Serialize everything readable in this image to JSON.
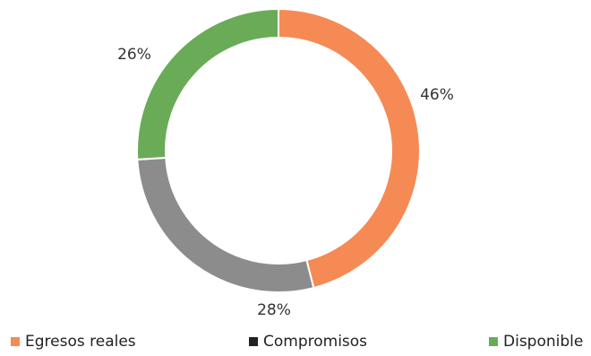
{
  "chart_data": {
    "type": "pie",
    "subtype": "donut",
    "categories": [
      "Egresos reales",
      "Compromisos",
      "Disponible"
    ],
    "values": [
      46,
      28,
      26
    ],
    "labels": [
      "46%",
      "28%",
      "26%"
    ],
    "colors": [
      "#f58a55",
      "#8c8c8c",
      "#6aab58"
    ],
    "legend_swatch_colors": [
      "#f58a55",
      "#222222",
      "#6aab58"
    ],
    "legend": {
      "position": "bottom",
      "items": [
        "Egresos reales",
        "Compromisos",
        "Disponible"
      ]
    }
  }
}
